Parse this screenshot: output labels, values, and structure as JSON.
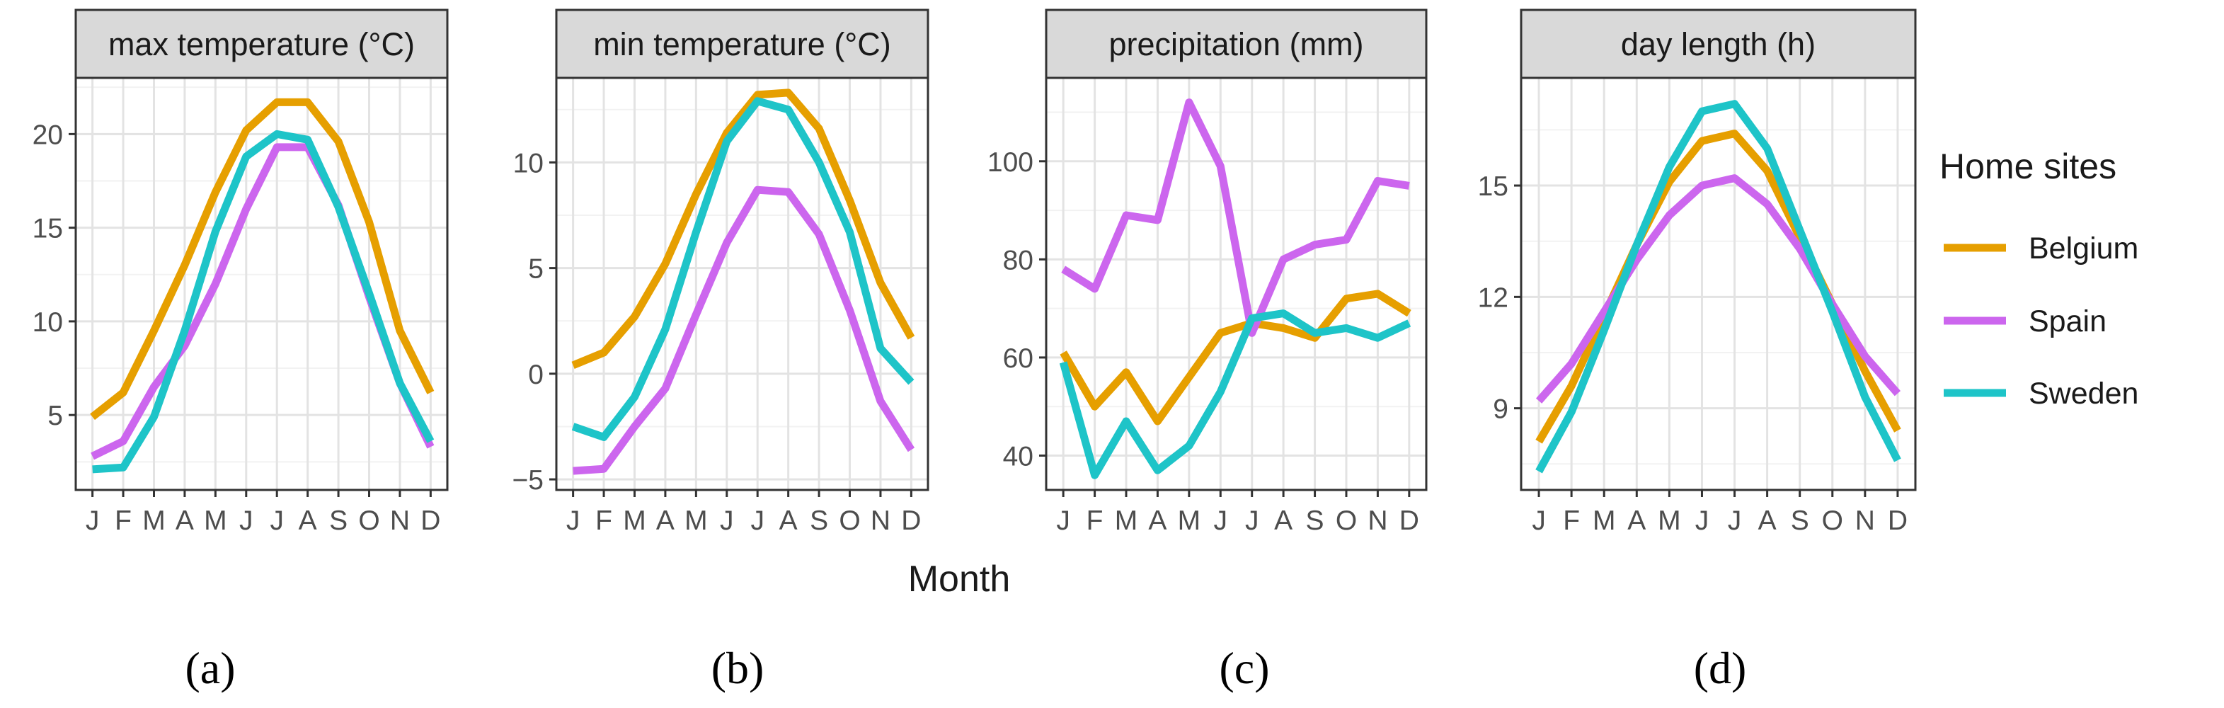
{
  "figure": {
    "xlabel": "Month",
    "panel_labels": [
      "(a)",
      "(b)",
      "(c)",
      "(d)"
    ],
    "colors": {
      "strip_fill": "#d9d9d9",
      "strip_border": "#333333",
      "grid_major": "#e3e3e3",
      "grid_minor": "#f2f2f2",
      "panel_border": "#333333"
    }
  },
  "legend": {
    "title": "Home sites",
    "items": [
      {
        "name": "Belgium",
        "color": "#E69F00"
      },
      {
        "name": "Spain",
        "color": "#CC66EE"
      },
      {
        "name": "Sweden",
        "color": "#1EC4C8"
      }
    ]
  },
  "chart_data": [
    {
      "type": "line",
      "title": "max temperature (°C)",
      "xlabel": "Month",
      "categories": [
        "J",
        "F",
        "M",
        "A",
        "M",
        "J",
        "J",
        "A",
        "S",
        "O",
        "N",
        "D"
      ],
      "ylim": [
        1,
        23
      ],
      "yticks": [
        5,
        10,
        15,
        20
      ],
      "series": [
        {
          "name": "Belgium",
          "color": "#E69F00",
          "values": [
            4.9,
            6.2,
            9.5,
            13.0,
            16.9,
            20.2,
            21.7,
            21.7,
            19.6,
            15.3,
            9.5,
            6.2
          ]
        },
        {
          "name": "Spain",
          "color": "#CC66EE",
          "values": [
            2.8,
            3.6,
            6.5,
            8.7,
            12.0,
            16.0,
            19.3,
            19.3,
            16.2,
            11.3,
            6.7,
            3.3
          ]
        },
        {
          "name": "Sweden",
          "color": "#1EC4C8",
          "values": [
            2.1,
            2.2,
            4.9,
            9.5,
            14.8,
            18.8,
            20.0,
            19.7,
            16.1,
            11.5,
            6.7,
            3.6
          ]
        }
      ]
    },
    {
      "type": "line",
      "title": "min temperature (°C)",
      "xlabel": "Month",
      "categories": [
        "J",
        "F",
        "M",
        "A",
        "M",
        "J",
        "J",
        "A",
        "S",
        "O",
        "N",
        "D"
      ],
      "ylim": [
        -5.5,
        14.0
      ],
      "yticks": [
        -5,
        0,
        5,
        10
      ],
      "series": [
        {
          "name": "Belgium",
          "color": "#E69F00",
          "values": [
            0.4,
            1.0,
            2.7,
            5.2,
            8.5,
            11.4,
            13.2,
            13.3,
            11.6,
            8.2,
            4.3,
            1.7
          ]
        },
        {
          "name": "Spain",
          "color": "#CC66EE",
          "values": [
            -4.6,
            -4.5,
            -2.5,
            -0.7,
            2.8,
            6.2,
            8.7,
            8.6,
            6.6,
            3.0,
            -1.3,
            -3.6
          ]
        },
        {
          "name": "Sweden",
          "color": "#1EC4C8",
          "values": [
            -2.5,
            -3.0,
            -1.1,
            2.1,
            6.7,
            11.0,
            12.9,
            12.5,
            10.0,
            6.7,
            1.2,
            -0.4
          ]
        }
      ]
    },
    {
      "type": "line",
      "title": "precipitation (mm)",
      "xlabel": "Month",
      "categories": [
        "J",
        "F",
        "M",
        "A",
        "M",
        "J",
        "J",
        "A",
        "S",
        "O",
        "N",
        "D"
      ],
      "ylim": [
        33,
        117
      ],
      "yticks": [
        40,
        60,
        80,
        100
      ],
      "series": [
        {
          "name": "Belgium",
          "color": "#E69F00",
          "values": [
            61,
            50,
            57,
            47,
            56,
            65,
            67,
            66,
            64,
            72,
            73,
            69
          ]
        },
        {
          "name": "Spain",
          "color": "#CC66EE",
          "values": [
            78,
            74,
            89,
            88,
            112,
            99,
            65,
            80,
            83,
            84,
            96,
            95
          ]
        },
        {
          "name": "Sweden",
          "color": "#1EC4C8",
          "values": [
            59,
            36,
            47,
            37,
            42,
            53,
            68,
            69,
            65,
            66,
            64,
            67
          ]
        }
      ]
    },
    {
      "type": "line",
      "title": "day length (h)",
      "xlabel": "Month",
      "categories": [
        "J",
        "F",
        "M",
        "A",
        "M",
        "J",
        "J",
        "A",
        "S",
        "O",
        "N",
        "D"
      ],
      "ylim": [
        6.8,
        17.9
      ],
      "yticks": [
        9,
        12,
        15
      ],
      "series": [
        {
          "name": "Belgium",
          "color": "#E69F00",
          "values": [
            8.1,
            9.6,
            11.5,
            13.4,
            15.1,
            16.2,
            16.4,
            15.4,
            13.6,
            11.8,
            10.0,
            8.4
          ]
        },
        {
          "name": "Spain",
          "color": "#CC66EE",
          "values": [
            9.2,
            10.2,
            11.6,
            13.0,
            14.2,
            15.0,
            15.2,
            14.5,
            13.3,
            11.8,
            10.4,
            9.4
          ]
        },
        {
          "name": "Sweden",
          "color": "#1EC4C8",
          "values": [
            7.3,
            8.9,
            11.1,
            13.4,
            15.5,
            17.0,
            17.2,
            16.0,
            13.8,
            11.6,
            9.3,
            7.6
          ]
        }
      ]
    }
  ]
}
